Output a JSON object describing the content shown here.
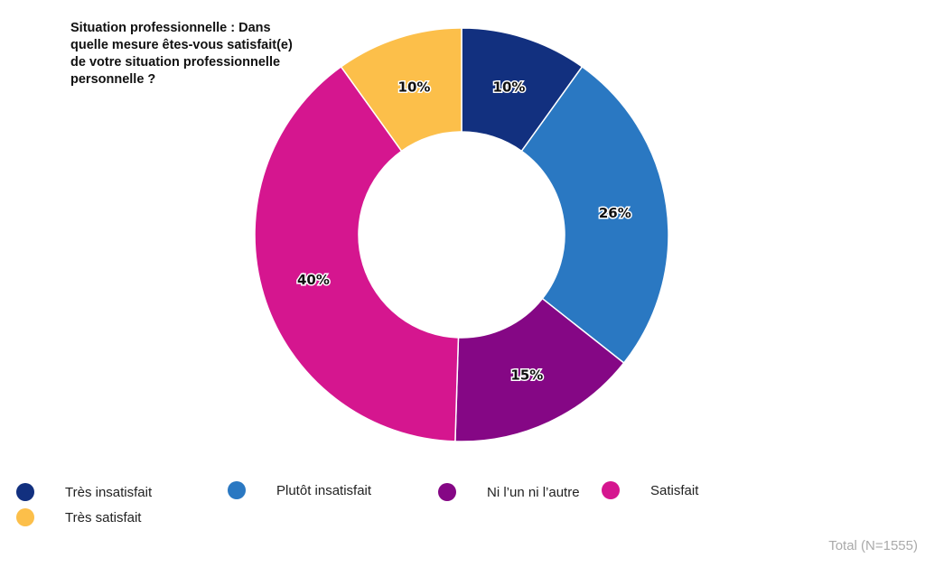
{
  "chart_data": {
    "type": "pie",
    "donut": true,
    "title_lines": [
      "Situation professionnelle : Dans",
      "quelle mesure êtes-vous satisfait(e)",
      "de votre situation professionnelle",
      "personnelle ?"
    ],
    "categories": [
      "Très insatisfait",
      "Plutôt insatisfait",
      "Ni l'un ni l'autre",
      "Satisfait",
      "Très satisfait"
    ],
    "legend_labels": [
      "Très insatisfait",
      "Plutôt insatisfait",
      "Ni l’un ni l’autre",
      "Satisfait",
      "Très satisfait"
    ],
    "values": [
      10,
      26,
      15,
      40,
      10
    ],
    "data_labels": [
      "10%",
      "26%",
      "15%",
      "40%",
      "10%"
    ],
    "colors": [
      "#12307f",
      "#2a78c2",
      "#850785",
      "#d5168f",
      "#fcbf4a"
    ],
    "legend_placement": "bottom-left",
    "total_note": "Total (N=1555)"
  }
}
